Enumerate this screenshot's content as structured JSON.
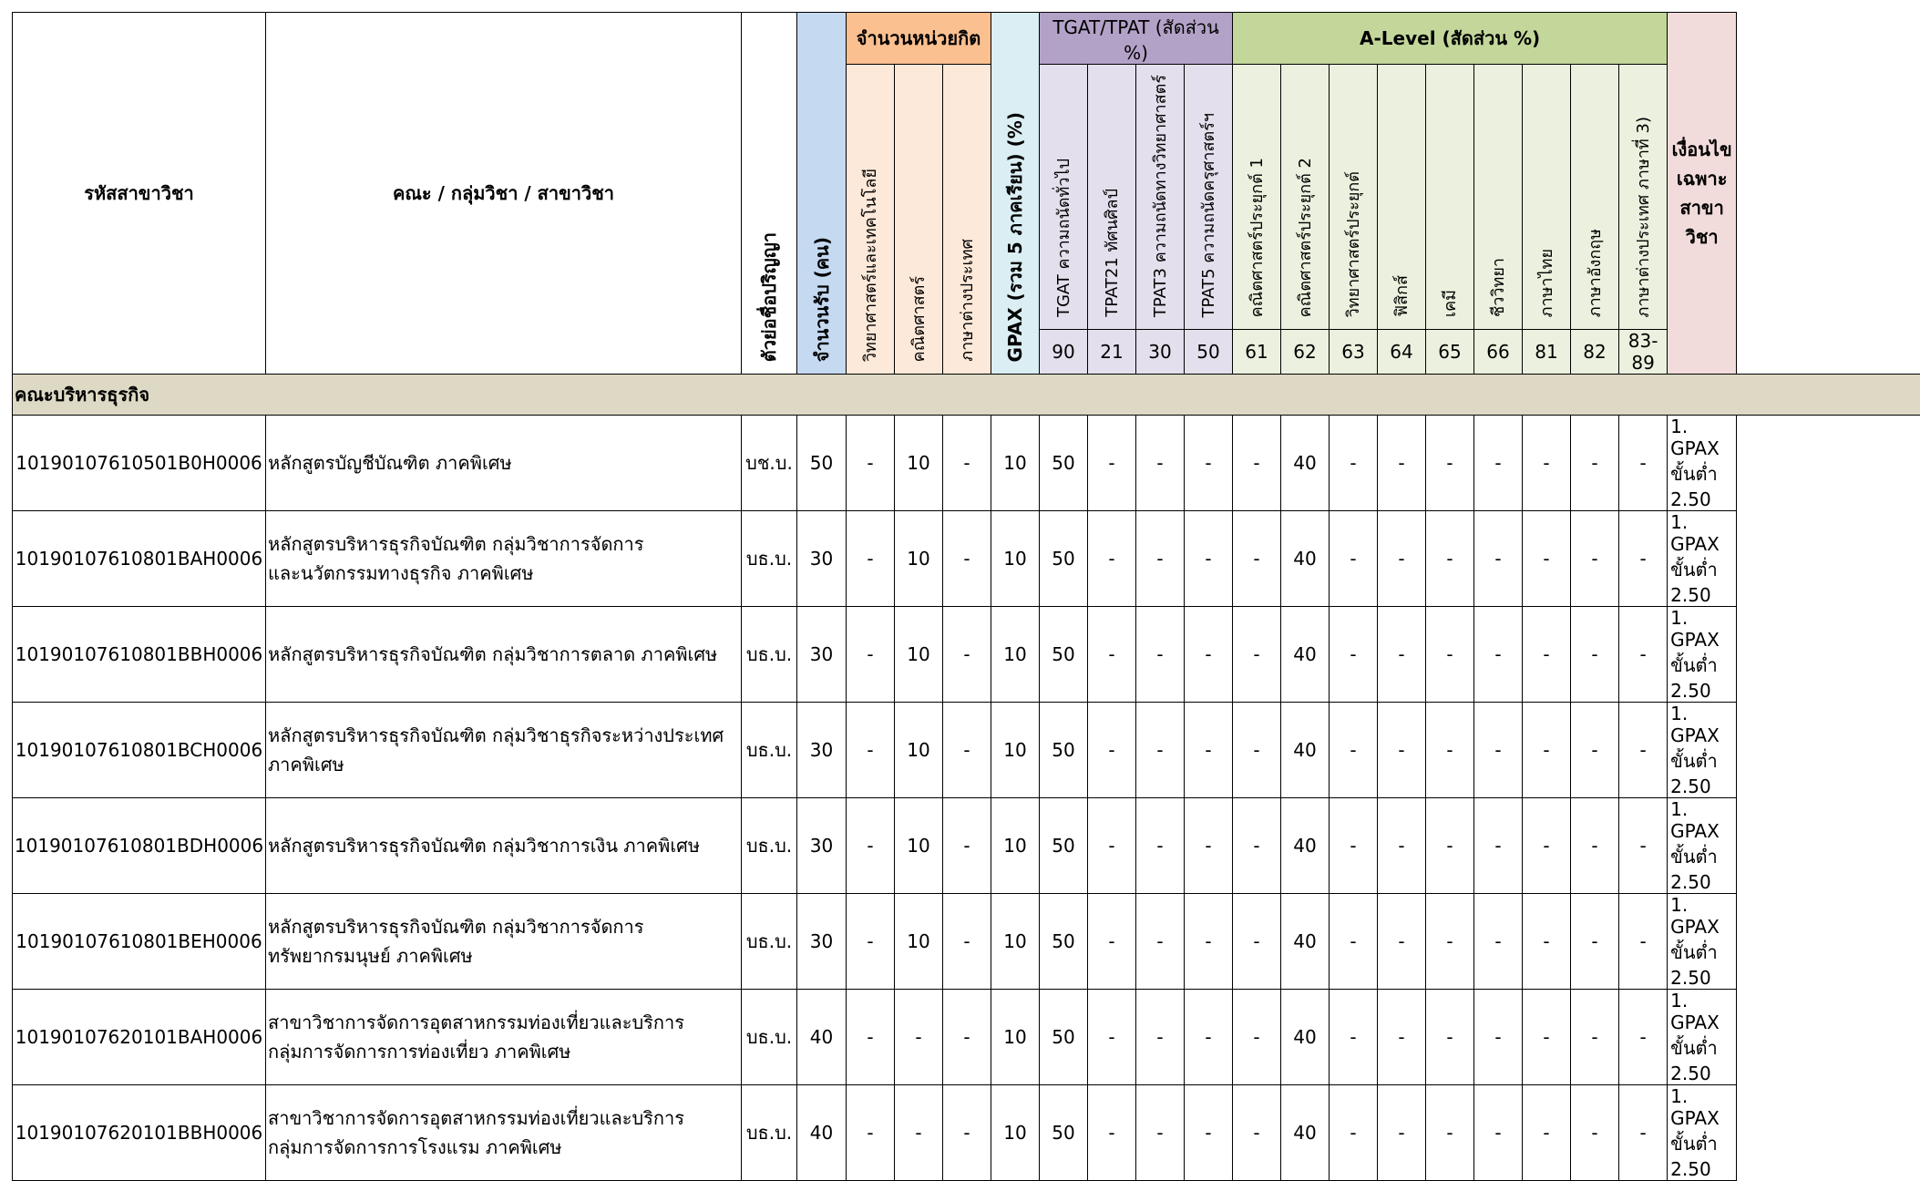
{
  "headers": {
    "code": "รหัสสาขาวิชา",
    "program": "คณะ / กลุ่มวิชา / สาขาวิชา",
    "degree_abbr": "ตัวย่อชื่อปริญญา",
    "seats": "จำนวนรับ (คน)",
    "credits_group": "จำนวนหน่วยกิต",
    "credits": [
      "วิทยาศาสตร์และเทคโนโลยี",
      "คณิตศาสตร์",
      "ภาษาต่างประเทศ"
    ],
    "gpax": "GPAX (รวม 5 ภาคเรียน) (%)",
    "tgat_group": "TGAT/TPAT (สัดส่วน %)",
    "tgat": [
      {
        "label": "TGAT  ความถนัดทั่วไป",
        "code": "90"
      },
      {
        "label": "TPAT21  ทัศนศิลป์",
        "code": "21"
      },
      {
        "label": "TPAT3  ความถนัดทางวิทยาศาสตร์",
        "code": "30"
      },
      {
        "label": "TPAT5  ความถนัดครุศาสตร์ฯ",
        "code": "50"
      }
    ],
    "alevel_group": "A-Level (สัดส่วน %)",
    "alevel": [
      {
        "label": "คณิตศาสตร์ประยุกต์ 1",
        "code": "61"
      },
      {
        "label": "คณิตศาสตร์ประยุกต์ 2",
        "code": "62"
      },
      {
        "label": "วิทยาศาสตร์ประยุกต์",
        "code": "63"
      },
      {
        "label": "ฟิสิกส์",
        "code": "64"
      },
      {
        "label": "เคมี",
        "code": "65"
      },
      {
        "label": "ชีววิทยา",
        "code": "66"
      },
      {
        "label": "ภาษาไทย",
        "code": "81"
      },
      {
        "label": "ภาษาอังกฤษ",
        "code": "82"
      },
      {
        "label": "ภาษาต่างประเทศ ภาษาที่ 3)",
        "code": "83-89"
      }
    ],
    "condition": "เงื่อนไขเฉพาะสาขาวิชา"
  },
  "faculty": "คณะบริหารธุรกิจ",
  "rows": [
    {
      "code": "10190107610501B0H0006",
      "program": [
        "หลักสูตรบัญชีบัณฑิต ภาคพิเศษ"
      ],
      "degree": "บช.บ.",
      "seats": "50",
      "cells": [
        "-",
        "10",
        "-",
        "10",
        "50",
        "-",
        "-",
        "-",
        "-",
        "40",
        "-",
        "-",
        "-",
        "-",
        "-",
        "-",
        "-"
      ],
      "condition": "1. GPAX ขั้นต่ำ 2.50"
    },
    {
      "code": "10190107610801BAH0006",
      "program": [
        "หลักสูตรบริหารธุรกิจบัณฑิต กลุ่มวิชาการจัดการ",
        "และนวัตกรรมทางธุรกิจ ภาคพิเศษ"
      ],
      "degree": "บธ.บ.",
      "seats": "30",
      "cells": [
        "-",
        "10",
        "-",
        "10",
        "50",
        "-",
        "-",
        "-",
        "-",
        "40",
        "-",
        "-",
        "-",
        "-",
        "-",
        "-",
        "-"
      ],
      "condition": "1. GPAX ขั้นต่ำ 2.50"
    },
    {
      "code": "10190107610801BBH0006",
      "program": [
        "หลักสูตรบริหารธุรกิจบัณฑิต กลุ่มวิชาการตลาด ภาคพิเศษ"
      ],
      "degree": "บธ.บ.",
      "seats": "30",
      "cells": [
        "-",
        "10",
        "-",
        "10",
        "50",
        "-",
        "-",
        "-",
        "-",
        "40",
        "-",
        "-",
        "-",
        "-",
        "-",
        "-",
        "-"
      ],
      "condition": "1. GPAX ขั้นต่ำ 2.50"
    },
    {
      "code": "10190107610801BCH0006",
      "program": [
        "หลักสูตรบริหารธุรกิจบัณฑิต กลุ่มวิชาธุรกิจระหว่างประเทศ",
        "ภาคพิเศษ"
      ],
      "degree": "บธ.บ.",
      "seats": "30",
      "cells": [
        "-",
        "10",
        "-",
        "10",
        "50",
        "-",
        "-",
        "-",
        "-",
        "40",
        "-",
        "-",
        "-",
        "-",
        "-",
        "-",
        "-"
      ],
      "condition": "1. GPAX ขั้นต่ำ 2.50"
    },
    {
      "code": "10190107610801BDH0006",
      "program": [
        "หลักสูตรบริหารธุรกิจบัณฑิต กลุ่มวิชาการเงิน ภาคพิเศษ"
      ],
      "degree": "บธ.บ.",
      "seats": "30",
      "cells": [
        "-",
        "10",
        "-",
        "10",
        "50",
        "-",
        "-",
        "-",
        "-",
        "40",
        "-",
        "-",
        "-",
        "-",
        "-",
        "-",
        "-"
      ],
      "condition": "1. GPAX ขั้นต่ำ 2.50"
    },
    {
      "code": "10190107610801BEH0006",
      "program": [
        "หลักสูตรบริหารธุรกิจบัณฑิต กลุ่มวิชาการจัดการ",
        "ทรัพยากรมนุษย์ ภาคพิเศษ"
      ],
      "degree": "บธ.บ.",
      "seats": "30",
      "cells": [
        "-",
        "10",
        "-",
        "10",
        "50",
        "-",
        "-",
        "-",
        "-",
        "40",
        "-",
        "-",
        "-",
        "-",
        "-",
        "-",
        "-"
      ],
      "condition": "1. GPAX ขั้นต่ำ 2.50"
    },
    {
      "code": "10190107620101BAH0006",
      "program": [
        "สาขาวิชาการจัดการอุตสาหกรรมท่องเที่ยวและบริการ",
        "กลุ่มการจัดการการท่องเที่ยว ภาคพิเศษ"
      ],
      "degree": "บธ.บ.",
      "seats": "40",
      "cells": [
        "-",
        "-",
        "-",
        "10",
        "50",
        "-",
        "-",
        "-",
        "-",
        "40",
        "-",
        "-",
        "-",
        "-",
        "-",
        "-",
        "-"
      ],
      "condition": "1. GPAX ขั้นต่ำ 2.50"
    },
    {
      "code": "10190107620101BBH0006",
      "program": [
        "สาขาวิชาการจัดการอุตสาหกรรมท่องเที่ยวและบริการ",
        "กลุ่มการจัดการการโรงแรม ภาคพิเศษ"
      ],
      "degree": "บธ.บ.",
      "seats": "40",
      "cells": [
        "-",
        "-",
        "-",
        "10",
        "50",
        "-",
        "-",
        "-",
        "-",
        "40",
        "-",
        "-",
        "-",
        "-",
        "-",
        "-",
        "-"
      ],
      "condition": "1. GPAX ขั้นต่ำ 2.50"
    }
  ]
}
